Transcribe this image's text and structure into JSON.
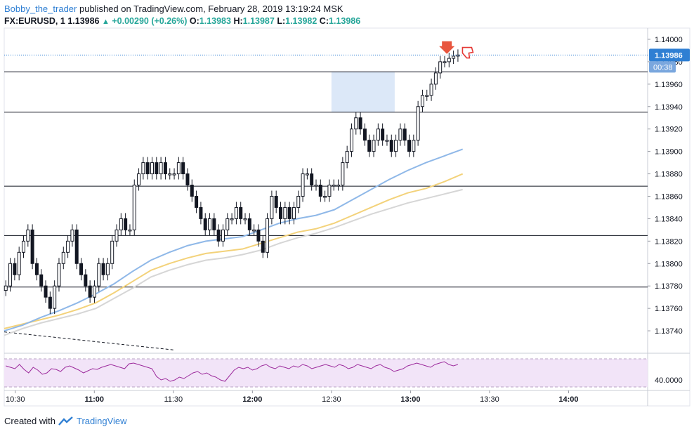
{
  "header": {
    "user": "Bobby_the_trader",
    "published_text": "published on TradingView.com, February 28, 2019 13:19:24 MSK",
    "symbol": "FX:EURUSD, 1",
    "price": "1.13986",
    "change": "+0.00290 (+0.26%)",
    "o_label": "O:",
    "o_value": "1.13983",
    "h_label": "H:",
    "h_value": "1.13987",
    "l_label": "L:",
    "l_value": "1.13982",
    "c_label": "C:",
    "c_value": "1.13986"
  },
  "footer": {
    "created_with": "Created with",
    "brand": "TradingView"
  },
  "colors": {
    "candle": "#131722",
    "ma_fast": "#8fb8e8",
    "ma_mid": "#f3d27a",
    "ma_slow": "#d6d6d6",
    "zone": "#dce8f8",
    "rsi_line": "#9c2a9c",
    "rsi_band": "#f2e4f8",
    "price_tag": "#2f7fd3",
    "arrow_down": "#e8553e"
  },
  "chart_data": {
    "type": "candlestick",
    "x_ticks": [
      {
        "label": "10:30",
        "t": 10.5
      },
      {
        "label": "11:00",
        "t": 11.0
      },
      {
        "label": "11:30",
        "t": 11.5
      },
      {
        "label": "12:00",
        "t": 12.0
      },
      {
        "label": "12:30",
        "t": 12.5
      },
      {
        "label": "13:00",
        "t": 13.0
      },
      {
        "label": "13:30",
        "t": 13.5
      },
      {
        "label": "14:00",
        "t": 14.0
      }
    ],
    "x_range": [
      10.43,
      14.5
    ],
    "y_range": [
      1.1372,
      1.1401
    ],
    "y_ticks": [
      "1.14000",
      "1.13980",
      "1.13960",
      "1.13940",
      "1.13920",
      "1.13900",
      "1.13880",
      "1.13860",
      "1.13840",
      "1.13820",
      "1.13800",
      "1.13780",
      "1.13760",
      "1.13740"
    ],
    "current_price": "1.13986",
    "countdown": "00:38",
    "horizontal_levels": [
      1.13971,
      1.13935,
      1.13869,
      1.13825,
      1.13779
    ],
    "zone": {
      "t_start": 12.5,
      "t_end": 12.9,
      "y_low": 1.13935,
      "y_high": 1.13971
    },
    "trendline": {
      "t1": 10.43,
      "y1": 1.13739,
      "t2": 11.5,
      "y2": 1.13723
    },
    "candles_close": [
      1.1378,
      1.138,
      1.1379,
      1.1381,
      1.1382,
      1.1383,
      1.138,
      1.1379,
      1.1378,
      1.1377,
      1.1376,
      1.1378,
      1.138,
      1.1381,
      1.1382,
      1.1383,
      1.138,
      1.1379,
      1.1378,
      1.1377,
      1.1378,
      1.138,
      1.1379,
      1.138,
      1.1382,
      1.1383,
      1.1384,
      1.1383,
      1.1383,
      1.1387,
      1.1388,
      1.1389,
      1.1388,
      1.1389,
      1.1388,
      1.1389,
      1.1388,
      1.1388,
      1.1388,
      1.1389,
      1.1388,
      1.1387,
      1.1386,
      1.1385,
      1.1384,
      1.1383,
      1.1384,
      1.1383,
      1.1382,
      1.1383,
      1.1384,
      1.1384,
      1.1385,
      1.1384,
      1.1384,
      1.1383,
      1.1383,
      1.1382,
      1.1381,
      1.1384,
      1.1386,
      1.1385,
      1.1384,
      1.1385,
      1.1384,
      1.1385,
      1.1386,
      1.1388,
      1.1388,
      1.1387,
      1.1387,
      1.1386,
      1.1386,
      1.1387,
      1.1387,
      1.1387,
      1.1389,
      1.139,
      1.1392,
      1.1393,
      1.1392,
      1.1391,
      1.139,
      1.1391,
      1.1392,
      1.1391,
      1.1391,
      1.139,
      1.1391,
      1.1392,
      1.1391,
      1.139,
      1.1391,
      1.1394,
      1.1395,
      1.1395,
      1.1396,
      1.1397,
      1.1398,
      1.1398,
      1.13983,
      1.13985,
      1.13986
    ],
    "ma_fast": [
      1.1374,
      1.13745,
      1.13752,
      1.13758,
      1.13765,
      1.13773,
      1.13782,
      1.13793,
      1.13803,
      1.1381,
      1.13816,
      1.1382,
      1.13822,
      1.13824,
      1.1383,
      1.13836,
      1.1384,
      1.13843,
      1.13848,
      1.13857,
      1.13866,
      1.13875,
      1.13883,
      1.1389,
      1.13896,
      1.13902
    ],
    "ma_mid": [
      1.13742,
      1.13746,
      1.1375,
      1.13754,
      1.13759,
      1.13765,
      1.13774,
      1.13784,
      1.13794,
      1.138,
      1.13805,
      1.13809,
      1.13811,
      1.13813,
      1.13818,
      1.13823,
      1.13828,
      1.13831,
      1.13836,
      1.13843,
      1.1385,
      1.13857,
      1.13863,
      1.13867,
      1.13873,
      1.1388
    ],
    "ma_slow": [
      1.13736,
      1.13742,
      1.13747,
      1.13751,
      1.13755,
      1.1376,
      1.13769,
      1.13778,
      1.13788,
      1.13794,
      1.13799,
      1.13803,
      1.13805,
      1.13808,
      1.13812,
      1.13818,
      1.13823,
      1.13827,
      1.13832,
      1.13838,
      1.13844,
      1.13849,
      1.13854,
      1.13858,
      1.13862,
      1.13866
    ],
    "rsi": {
      "y_tick": "40.0000",
      "band": [
        30,
        70
      ],
      "values": [
        60,
        58,
        56,
        62,
        55,
        50,
        58,
        54,
        48,
        50,
        56,
        55,
        52,
        58,
        60,
        57,
        54,
        50,
        53,
        56,
        55,
        58,
        60,
        62,
        60,
        58,
        56,
        63,
        64,
        62,
        60,
        58,
        56,
        45,
        40,
        42,
        38,
        40,
        44,
        42,
        46,
        50,
        52,
        48,
        50,
        46,
        44,
        40,
        38,
        46,
        54,
        58,
        56,
        58,
        54,
        56,
        60,
        62,
        58,
        56,
        60,
        58,
        56,
        60,
        58,
        62,
        60,
        56,
        58,
        60,
        62,
        60,
        58,
        62,
        60,
        56,
        58,
        62,
        60,
        58,
        56,
        60,
        62,
        58,
        56,
        52,
        54,
        56,
        60,
        62,
        64,
        62,
        60,
        58,
        62,
        64,
        66,
        62,
        60,
        62
      ]
    }
  }
}
